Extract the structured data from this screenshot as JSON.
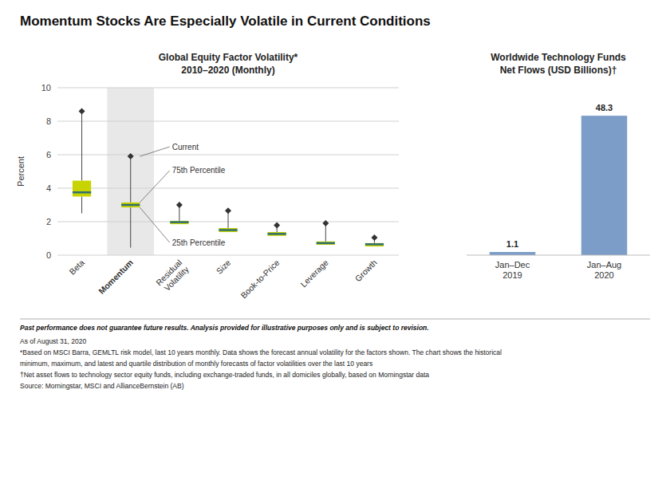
{
  "title": "Momentum Stocks Are Especially Volatile in Current Conditions",
  "notes": [
    "Past performance does not guarantee future results. Analysis provided for illustrative purposes only and is subject to revision.",
    "As of August 31, 2020",
    "*Based on MSCI Barra, GEMLTL risk model, last 10 years monthly. Data shows the forecast annual volatility for the factors shown. The chart shows the historical",
    "minimum, maximum, and latest and quartile distribution of monthly forecasts of factor volatilities over the last 10 years",
    "†Net asset flows to technology sector equity funds, including exchange-traded funds, in all domiciles globally, based on Morningstar data",
    "Source: Morningstar, MSCI and AllianceBernstein (AB)"
  ],
  "chart_data": [
    {
      "type": "box",
      "title": "Global Equity Factor Volatility*",
      "subtitle": "2010–2020 (Monthly)",
      "y_label": "Percent",
      "categories": [
        "Beta",
        "Momentum",
        "Residual\nVolatility",
        "Size",
        "Book-to-Price",
        "Leverage",
        "Growth"
      ],
      "min": [
        2.5,
        0.45,
        null,
        null,
        null,
        null,
        null
      ],
      "q1": [
        3.5,
        2.85,
        1.85,
        1.38,
        1.15,
        0.62,
        0.52
      ],
      "median": [
        3.75,
        3.0,
        1.97,
        1.5,
        1.27,
        0.72,
        0.65
      ],
      "q3": [
        4.45,
        3.15,
        2.05,
        1.62,
        1.38,
        0.82,
        0.72
      ],
      "max": [
        8.6,
        5.9,
        3.0,
        2.65,
        1.78,
        1.9,
        1.05
      ],
      "color": "#c8d400",
      "ylim": [
        0,
        10
      ],
      "yticks": [
        0,
        2,
        4,
        6,
        8,
        10
      ],
      "grid": true,
      "annotations": [
        {
          "text": "Current",
          "category": "Momentum",
          "value": 5.9
        },
        {
          "text": "75th Percentile",
          "category": "Momentum",
          "value": 3.15
        },
        {
          "text": "25th Percentile",
          "category": "Momentum",
          "value": 2.85
        }
      ]
    },
    {
      "type": "bar",
      "title": "Worldwide Technology Funds",
      "subtitle": "Net Flows (USD Billions)†",
      "categories": [
        "Jan–Dec\n2019",
        "Jan–Aug\n2020"
      ],
      "values": [
        1.1,
        48.3
      ],
      "color": "#7b9dc7",
      "ylim": [
        0,
        58
      ],
      "tick_labels": "x",
      "data_labels": true
    }
  ]
}
